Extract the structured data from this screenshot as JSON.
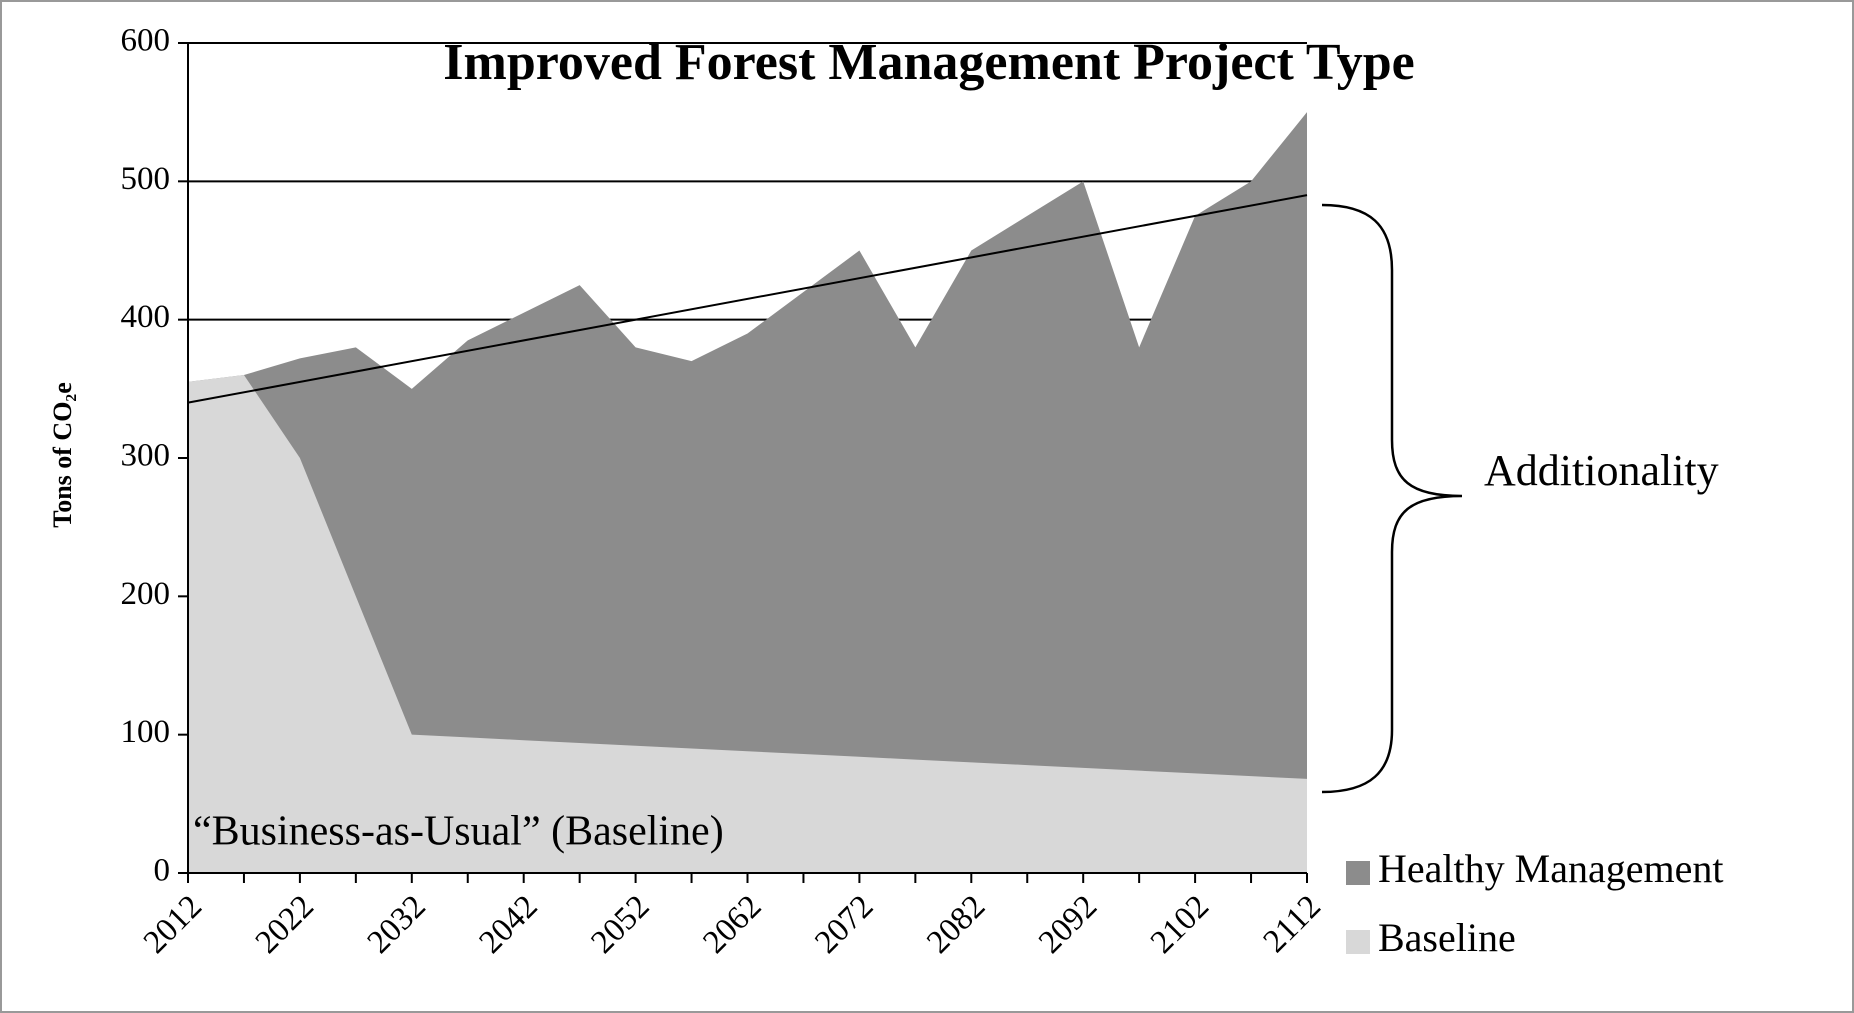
{
  "chart_data": {
    "type": "area",
    "title": "Improved Forest Management Project Type",
    "y_label": "Tons of CO₂e",
    "x": [
      2012,
      2017,
      2022,
      2027,
      2032,
      2037,
      2042,
      2047,
      2052,
      2057,
      2062,
      2067,
      2072,
      2077,
      2082,
      2087,
      2092,
      2097,
      2102,
      2107,
      2112
    ],
    "series": [
      {
        "name": "Healthy Management",
        "color": "#8c8c8c",
        "values": [
          355,
          360,
          372,
          380,
          350,
          385,
          405,
          425,
          380,
          370,
          390,
          420,
          450,
          380,
          450,
          475,
          500,
          380,
          475,
          500,
          550
        ]
      },
      {
        "name": "Baseline",
        "color": "#d8d8d8",
        "values": [
          355,
          360,
          300,
          200,
          100,
          98,
          96,
          94,
          92,
          90,
          88,
          86,
          84,
          82,
          80,
          78,
          76,
          74,
          72,
          70,
          68
        ]
      }
    ],
    "trendline": {
      "x": [
        2012,
        2112
      ],
      "values": [
        340,
        490
      ]
    },
    "annotations": [
      "Additionality",
      "“Business-as-Usual” (Baseline)"
    ],
    "xlim": [
      2012,
      2112
    ],
    "xticks": [
      2012,
      2022,
      2032,
      2042,
      2052,
      2062,
      2072,
      2082,
      2092,
      2102,
      2112
    ],
    "ylim": [
      0,
      600
    ],
    "yticks": [
      0,
      100,
      200,
      300,
      400,
      500,
      600
    ],
    "grid": true,
    "legend": "lower right"
  }
}
